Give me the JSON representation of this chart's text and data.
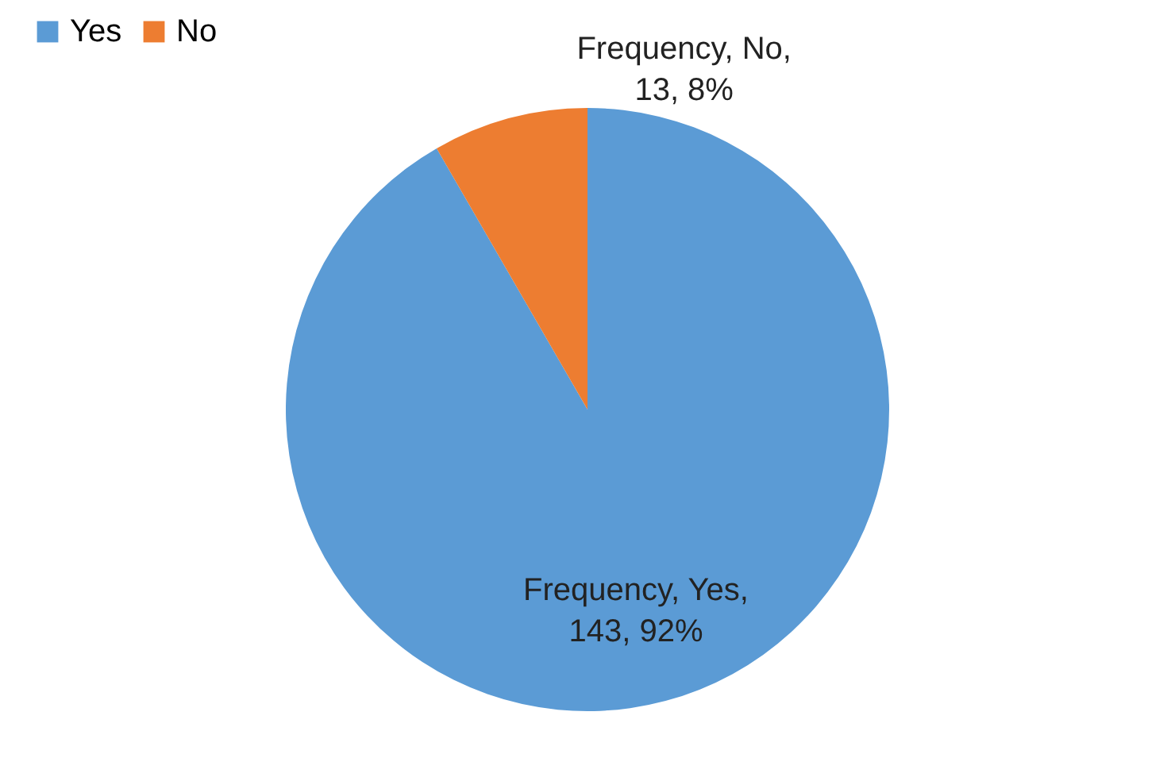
{
  "chart_data": {
    "type": "pie",
    "categories": [
      "Yes",
      "No"
    ],
    "values": [
      143,
      13
    ],
    "colors": [
      "#5b9bd5",
      "#ed7d31"
    ],
    "value_labels": [
      "Frequency, Yes, 143, 92%",
      "Frequency, No, 13, 8%"
    ],
    "legend": "top"
  }
}
